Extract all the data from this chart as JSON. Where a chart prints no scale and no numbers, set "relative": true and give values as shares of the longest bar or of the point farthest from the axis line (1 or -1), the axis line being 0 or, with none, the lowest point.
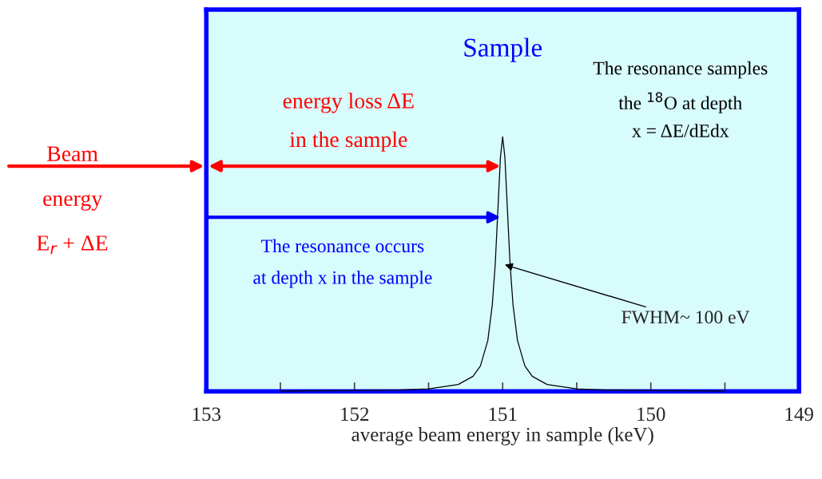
{
  "chart_data": {
    "type": "line",
    "title": "Sample",
    "xlabel": "average beam energy in sample (keV)",
    "relative": true,
    "x": [
      152.5,
      152,
      151.7,
      151.5,
      151.3,
      151.2,
      151.15,
      151.1,
      151.07,
      151.05,
      151.03,
      151.015,
      151,
      150.985,
      150.97,
      150.95,
      150.93,
      150.9,
      150.85,
      150.8,
      150.7,
      150.5,
      150.3,
      150,
      149.5
    ],
    "series": [
      {
        "color": "#000000",
        "values": [
          0.001,
          0.003,
          0.005,
          0.01,
          0.027,
          0.059,
          0.1,
          0.2,
          0.34,
          0.5,
          0.74,
          0.92,
          1,
          0.92,
          0.74,
          0.5,
          0.34,
          0.2,
          0.1,
          0.059,
          0.027,
          0.01,
          0.005,
          0.003,
          0.001
        ]
      }
    ],
    "xlim": [
      153,
      149
    ],
    "xticks": [
      153,
      {
        "value": 152.5,
        "label": null
      },
      152,
      {
        "value": 151.5,
        "label": null
      },
      151,
      {
        "value": 150.5,
        "label": null
      },
      150,
      {
        "value": 149.5,
        "label": null
      },
      149
    ],
    "tick_labels": "x",
    "grid": false,
    "legend": false,
    "marker": "none",
    "line_style": "solid",
    "annotations": [
      "Beam\nenergy\nE$_{r}$ + ΔE",
      "energy loss ΔE\nin the sample",
      "The resonance occurs\nat depth x in the sample",
      "The resonance samples\nthe $^{18}$O at depth\nx = ΔE/dEdx",
      "FWHM~ 100 eV"
    ]
  }
}
